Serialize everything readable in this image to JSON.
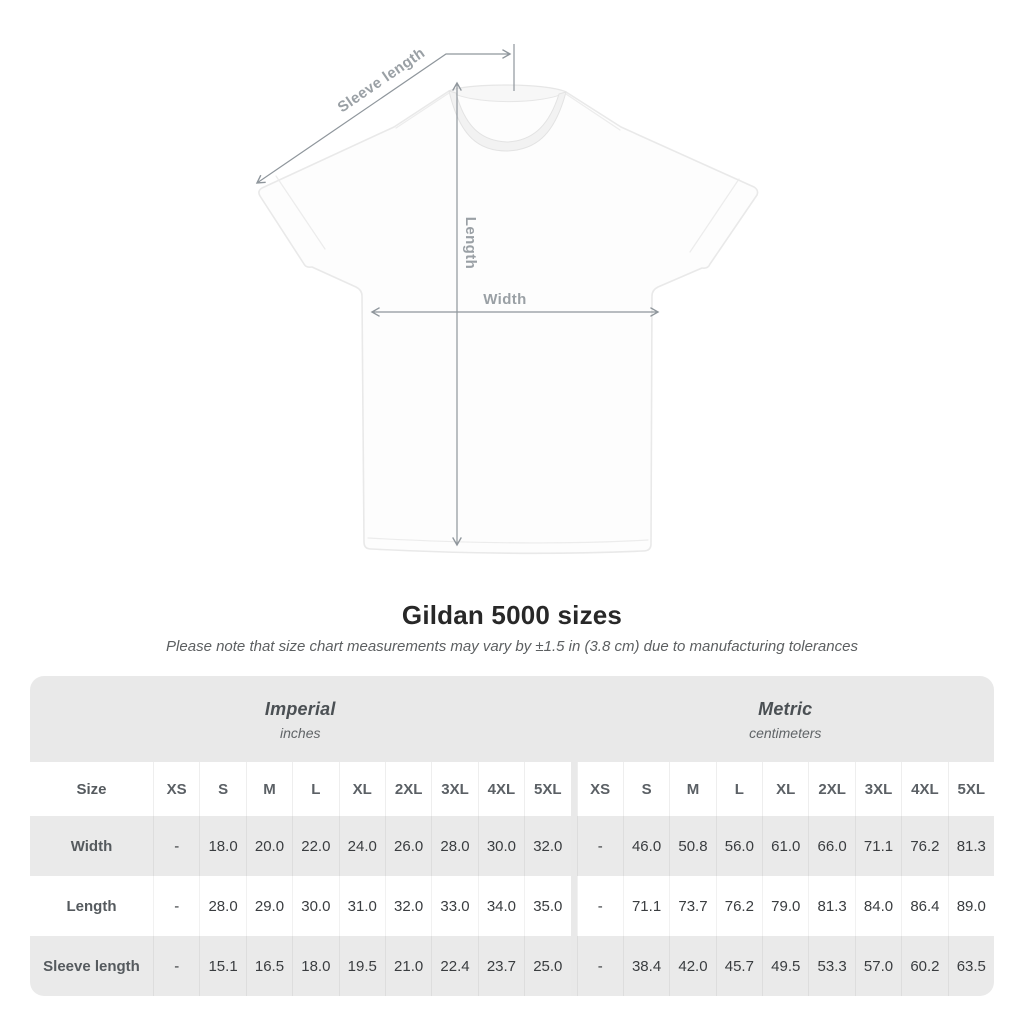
{
  "diagram": {
    "labels": {
      "sleeve_length": "Sleeve length",
      "length": "Length",
      "width": "Width"
    }
  },
  "header": {
    "title": "Gildan 5000 sizes",
    "subtitle": "Please note that size chart measurements may vary by ±1.5 in (3.8 cm) due to manufacturing tolerances"
  },
  "table": {
    "groups": [
      {
        "label": "Imperial",
        "unit": "inches"
      },
      {
        "label": "Metric",
        "unit": "centimeters"
      }
    ],
    "size_header": "Size",
    "sizes": [
      "XS",
      "S",
      "M",
      "L",
      "XL",
      "2XL",
      "3XL",
      "4XL",
      "5XL"
    ],
    "rows": [
      {
        "label": "Width",
        "imperial": [
          "-",
          "18.0",
          "20.0",
          "22.0",
          "24.0",
          "26.0",
          "28.0",
          "30.0",
          "32.0"
        ],
        "metric": [
          "-",
          "46.0",
          "50.8",
          "56.0",
          "61.0",
          "66.0",
          "71.1",
          "76.2",
          "81.3"
        ]
      },
      {
        "label": "Length",
        "imperial": [
          "-",
          "28.0",
          "29.0",
          "30.0",
          "31.0",
          "32.0",
          "33.0",
          "34.0",
          "35.0"
        ],
        "metric": [
          "-",
          "71.1",
          "73.7",
          "76.2",
          "79.0",
          "81.3",
          "84.0",
          "86.4",
          "89.0"
        ]
      },
      {
        "label": "Sleeve length",
        "imperial": [
          "-",
          "15.1",
          "16.5",
          "18.0",
          "19.5",
          "21.0",
          "22.4",
          "23.7",
          "25.0"
        ],
        "metric": [
          "-",
          "38.4",
          "42.0",
          "45.7",
          "49.5",
          "53.3",
          "57.0",
          "60.2",
          "63.5"
        ]
      }
    ]
  },
  "colors": {
    "stripe": "#eaeaea",
    "header_band": "#e9e9e9",
    "annotation_line": "#8f969c",
    "annotation_text": "#9aa0a5",
    "title_text": "#282828",
    "shirt_fill": "#fdfdfd"
  }
}
